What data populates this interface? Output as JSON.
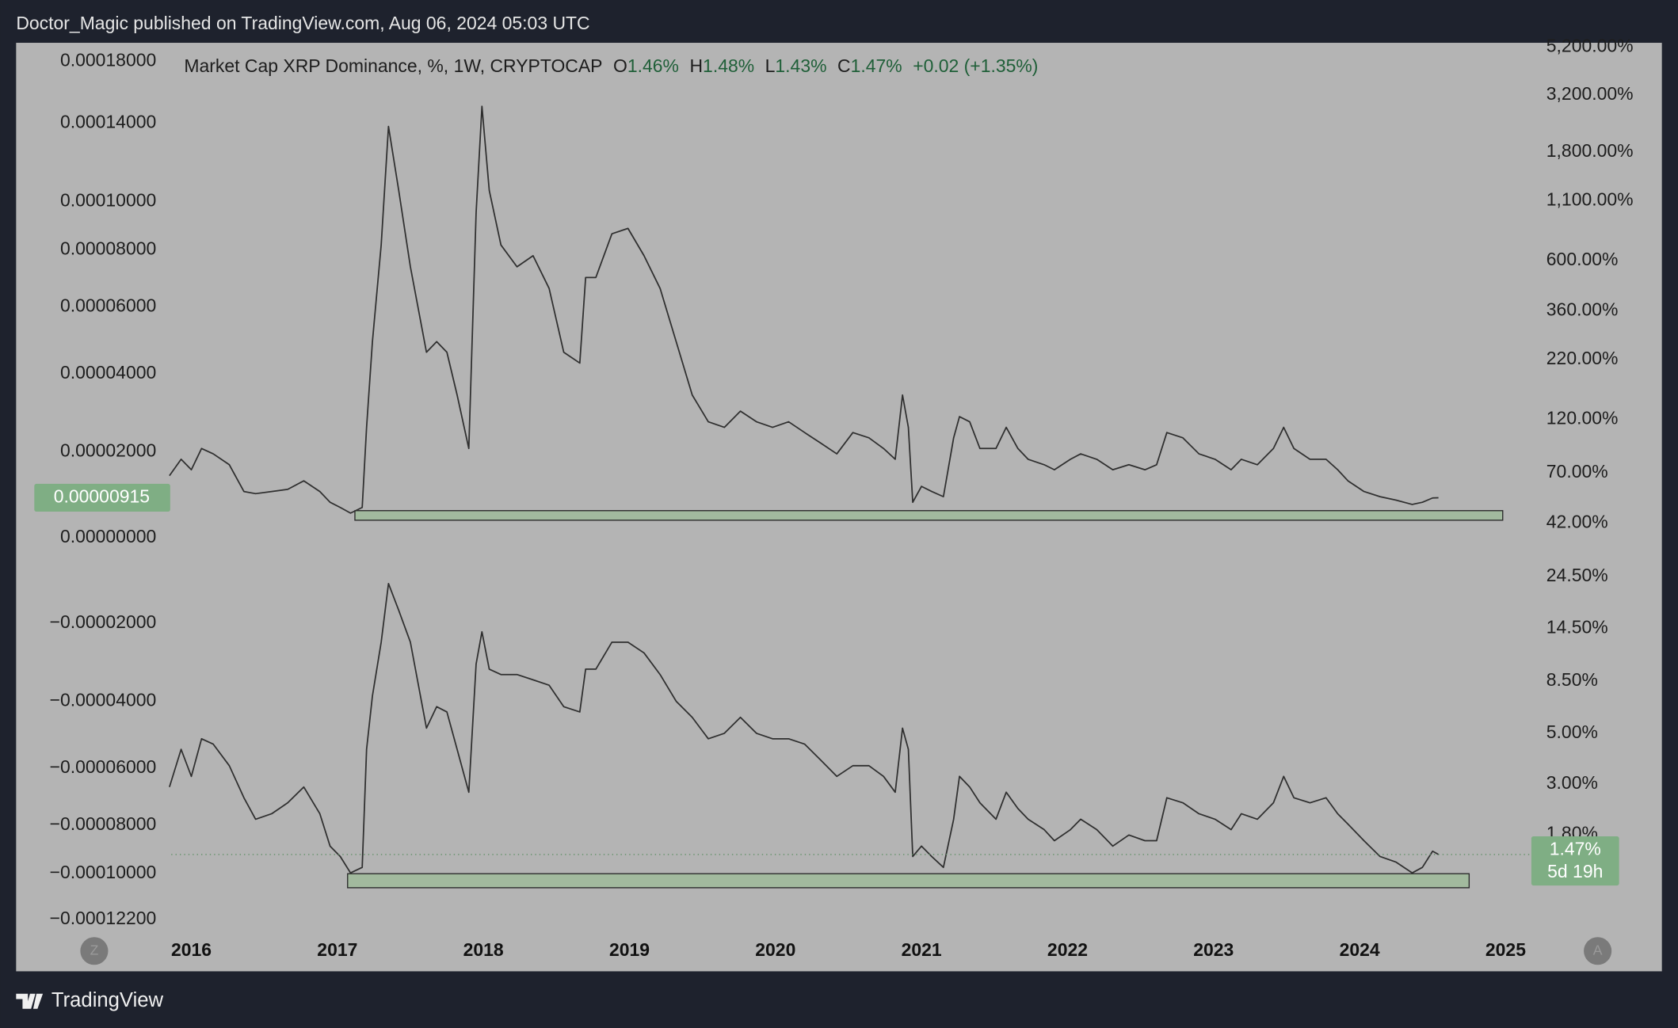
{
  "header": {
    "publisher_line": "Doctor_Magic published on TradingView.com, Aug 06, 2024 05:03 UTC"
  },
  "footer": {
    "brand": "TradingView"
  },
  "chart_data": {
    "type": "line",
    "y_scale": "log",
    "y2_scale": "symlog",
    "xlim": [
      2014.8,
      2026.07
    ],
    "xticks": [
      2016,
      2017,
      2018,
      2019,
      2020,
      2021,
      2022,
      2023,
      2024,
      2025
    ],
    "ylim": [
      0.68,
      5430
    ],
    "yticks": [
      {
        "value": 5200,
        "label": "5,200.00%"
      },
      {
        "value": 3200,
        "label": "3,200.00%"
      },
      {
        "value": 1800,
        "label": "1,800.00%"
      },
      {
        "value": 1100,
        "label": "1,100.00%"
      },
      {
        "value": 600,
        "label": "600.00%"
      },
      {
        "value": 360,
        "label": "360.00%"
      },
      {
        "value": 220,
        "label": "220.00%"
      },
      {
        "value": 120,
        "label": "120.00%"
      },
      {
        "value": 70,
        "label": "70.00%"
      },
      {
        "value": 42,
        "label": "42.00%"
      },
      {
        "value": 24.5,
        "label": "24.50%"
      },
      {
        "value": 14.5,
        "label": "14.50%"
      },
      {
        "value": 8.5,
        "label": "8.50%"
      },
      {
        "value": 5,
        "label": "5.00%"
      },
      {
        "value": 3,
        "label": "3.00%"
      },
      {
        "value": 1.8,
        "label": "1.80%"
      }
    ],
    "y2lim": [
      -0.000128,
      0.000194
    ],
    "y2ticks": [
      {
        "value": 0.00018,
        "label": "0.00018000"
      },
      {
        "value": 0.00014,
        "label": "0.00014000"
      },
      {
        "value": 0.0001,
        "label": "0.00010000"
      },
      {
        "value": 8e-05,
        "label": "0.00008000"
      },
      {
        "value": 6e-05,
        "label": "0.00006000"
      },
      {
        "value": 4e-05,
        "label": "0.00004000"
      },
      {
        "value": 2e-05,
        "label": "0.00002000"
      },
      {
        "value": 0,
        "label": "0.00000000"
      },
      {
        "value": -2e-05,
        "label": "−0.00002000"
      },
      {
        "value": -4e-05,
        "label": "−0.00004000"
      },
      {
        "value": -6e-05,
        "label": "−0.00006000"
      },
      {
        "value": -8e-05,
        "label": "−0.00008000"
      },
      {
        "value": -0.0001,
        "label": "−0.00010000"
      },
      {
        "value": -0.000122,
        "label": "−0.00012200"
      }
    ],
    "ohlc": [
      {
        "key": "O",
        "value": "1.46%"
      },
      {
        "key": "H",
        "value": "1.48%"
      },
      {
        "key": "L",
        "value": "1.43%"
      },
      {
        "key": "C",
        "value": "1.47%"
      }
    ],
    "change": "+0.02 (+1.35%)",
    "scale_buttons": [
      "Z",
      "A"
    ],
    "x": [
      2015.85,
      2015.93,
      2016.0,
      2016.07,
      2016.15,
      2016.26,
      2016.36,
      2016.44,
      2016.55,
      2016.66,
      2016.77,
      2016.88,
      2016.95,
      2017.02,
      2017.09,
      2017.17,
      2017.2,
      2017.24,
      2017.3,
      2017.35,
      2017.42,
      2017.5,
      2017.61,
      2017.68,
      2017.75,
      2017.82,
      2017.9,
      2017.95,
      2017.99,
      2018.04,
      2018.12,
      2018.23,
      2018.34,
      2018.45,
      2018.55,
      2018.66,
      2018.7,
      2018.77,
      2018.88,
      2018.99,
      2019.1,
      2019.21,
      2019.32,
      2019.43,
      2019.54,
      2019.65,
      2019.76,
      2019.87,
      2019.98,
      2020.09,
      2020.2,
      2020.31,
      2020.42,
      2020.53,
      2020.64,
      2020.74,
      2020.82,
      2020.87,
      2020.91,
      2020.94,
      2021.0,
      2021.07,
      2021.15,
      2021.22,
      2021.26,
      2021.33,
      2021.4,
      2021.51,
      2021.58,
      2021.66,
      2021.73,
      2021.84,
      2021.91,
      2022.02,
      2022.09,
      2022.2,
      2022.31,
      2022.42,
      2022.53,
      2022.61,
      2022.68,
      2022.79,
      2022.9,
      2023.01,
      2023.12,
      2023.19,
      2023.3,
      2023.41,
      2023.48,
      2023.55,
      2023.66,
      2023.77,
      2023.85,
      2023.92,
      2024.03,
      2024.14,
      2024.25,
      2024.36,
      2024.43,
      2024.5,
      2024.54
    ],
    "series": [
      {
        "name": "Market Cap XRP Dominance, %, 1W, CRYPTOCAP",
        "color": "#2f2f2f",
        "last_label": "1.47%",
        "countdown": "5d 19h",
        "values": [
          2.91,
          4.26,
          3.24,
          4.74,
          4.49,
          3.61,
          2.61,
          2.1,
          2.22,
          2.48,
          2.91,
          2.22,
          1.6,
          1.44,
          1.22,
          1.29,
          4.26,
          7.31,
          12.6,
          22.8,
          17.4,
          12.6,
          5.28,
          6.56,
          6.22,
          4.26,
          2.76,
          10.1,
          14.0,
          9.59,
          9.08,
          9.08,
          8.61,
          8.15,
          6.56,
          6.22,
          9.59,
          9.59,
          12.6,
          12.6,
          11.3,
          9.08,
          6.93,
          5.89,
          4.74,
          5.01,
          5.89,
          5.01,
          4.74,
          4.74,
          4.49,
          3.82,
          3.24,
          3.61,
          3.61,
          3.24,
          2.76,
          5.28,
          4.26,
          1.44,
          1.6,
          1.44,
          1.29,
          2.1,
          3.24,
          2.91,
          2.48,
          2.1,
          2.76,
          2.34,
          2.1,
          1.89,
          1.69,
          1.89,
          2.1,
          1.89,
          1.6,
          1.79,
          1.69,
          1.69,
          2.61,
          2.48,
          2.22,
          2.1,
          1.89,
          2.22,
          2.1,
          2.48,
          3.24,
          2.61,
          2.48,
          2.61,
          2.22,
          2.0,
          1.69,
          1.44,
          1.36,
          1.22,
          1.29,
          1.52,
          1.47
        ]
      },
      {
        "color": "#2f2f2f",
        "axis": "y2",
        "last_label": "0.00000915",
        "values": [
          1.43e-05,
          1.82e-05,
          1.57e-05,
          2.08e-05,
          1.95e-05,
          1.69e-05,
          1.06e-05,
          1.01e-05,
          1.06e-05,
          1.11e-05,
          1.31e-05,
          1.06e-05,
          8.1e-06,
          6.9e-06,
          5.6e-06,
          6.9e-06,
          2.6e-05,
          4.92e-05,
          8.19e-05,
          0.000138,
          0.000105,
          7.37e-05,
          4.61e-05,
          4.92e-05,
          4.61e-05,
          3.43e-05,
          2.08e-05,
          9.51e-05,
          0.00015,
          0.000105,
          8.19e-05,
          7.37e-05,
          7.78e-05,
          6.61e-05,
          4.61e-05,
          4.3e-05,
          6.99e-05,
          6.99e-05,
          8.63e-05,
          8.85e-05,
          7.78e-05,
          6.61e-05,
          4.92e-05,
          3.43e-05,
          2.74e-05,
          2.6e-05,
          3.01e-05,
          2.74e-05,
          2.6e-05,
          2.74e-05,
          2.47e-05,
          2.21e-05,
          1.95e-05,
          2.47e-05,
          2.34e-05,
          2.08e-05,
          1.82e-05,
          3.43e-05,
          2.6e-05,
          8.1e-06,
          1.18e-05,
          1.06e-05,
          9.4e-06,
          2.34e-05,
          2.87e-05,
          2.74e-05,
          2.08e-05,
          2.08e-05,
          2.6e-05,
          2.08e-05,
          1.82e-05,
          1.69e-05,
          1.57e-05,
          1.82e-05,
          1.95e-05,
          1.82e-05,
          1.57e-05,
          1.69e-05,
          1.57e-05,
          1.69e-05,
          2.47e-05,
          2.34e-05,
          1.95e-05,
          1.82e-05,
          1.57e-05,
          1.82e-05,
          1.69e-05,
          2.08e-05,
          2.6e-05,
          2.08e-05,
          1.82e-05,
          1.82e-05,
          1.57e-05,
          1.31e-05,
          1.06e-05,
          9.4e-06,
          8.6e-06,
          7.6e-06,
          8.1e-06,
          9.1e-06,
          9.15e-06
        ]
      }
    ],
    "zones": [
      {
        "x": [
          2017.12,
          2024.98
        ],
        "y": [
          43.3,
          47.7
        ],
        "color": "#9dbb98"
      },
      {
        "x": [
          2017.07,
          2024.75
        ],
        "y": [
          1.05,
          1.21
        ],
        "color": "#9dbb98"
      }
    ]
  }
}
